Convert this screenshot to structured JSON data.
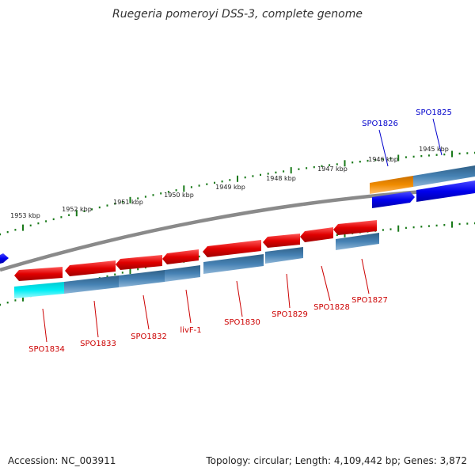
{
  "title": "Ruegeria pomeroyi DSS-3, complete genome",
  "ticks": [
    "1953 kbp",
    "1952 kbp",
    "1951 kbp",
    "1950 kbp",
    "1949 kbp",
    "1948 kbp",
    "1947 kbp",
    "1946 kbp",
    "1945 kbp"
  ],
  "genes_plus": [
    {
      "label": "SPO1826",
      "color": "#0000ee"
    },
    {
      "label": "SPO1825",
      "color": "#0000ee"
    }
  ],
  "genes_minus": [
    {
      "label": "SPO1834",
      "color": "#cc0000"
    },
    {
      "label": "SPO1833",
      "color": "#cc0000"
    },
    {
      "label": "SPO1832",
      "color": "#cc0000"
    },
    {
      "label": "livF-1",
      "color": "#cc0000"
    },
    {
      "label": "SPO1830",
      "color": "#cc0000"
    },
    {
      "label": "SPO1829",
      "color": "#cc0000"
    },
    {
      "label": "SPO1828",
      "color": "#cc0000"
    },
    {
      "label": "SPO1827",
      "color": "#cc0000"
    }
  ],
  "footer": {
    "accession": "Accession: NC_003911",
    "stats": "Topology: circular; Length: 4,109,442 bp; Genes: 3,872"
  },
  "colors": {
    "backbone": "#888888",
    "tick": "#1a7a1a",
    "gene_red": "#e00000",
    "gene_blue": "#0000ee",
    "cds_steel": "#4682b4",
    "cds_cyan": "#00e5ee",
    "cds_orange": "#f08c00"
  }
}
